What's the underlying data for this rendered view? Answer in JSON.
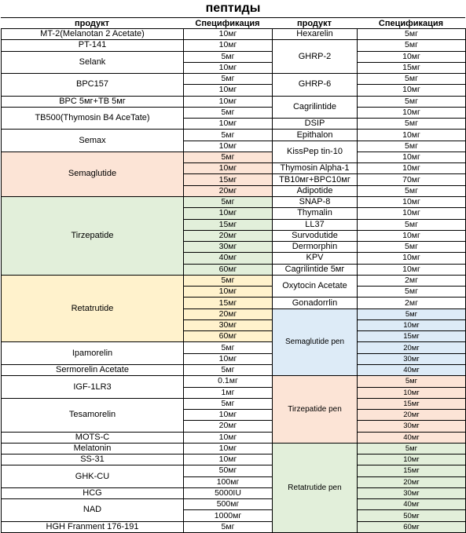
{
  "title": "пептиды",
  "headers": {
    "product": "продукт",
    "spec": "Спецификация"
  },
  "colors": {
    "salmon": "#fce4d6",
    "green": "#e2efda",
    "yellow": "#fff2cc",
    "blue": "#ddebf7"
  },
  "left_groups": [
    {
      "name": "MT-2(Melanotan 2 Acetate)",
      "specs": [
        "10мг"
      ]
    },
    {
      "name": "PT-141",
      "specs": [
        "10мг"
      ]
    },
    {
      "name": "Selank",
      "specs": [
        "5мг",
        "10мг"
      ]
    },
    {
      "name": "BPC157",
      "specs": [
        "5мг",
        "10мг"
      ]
    },
    {
      "name": "BPC 5мг+TB 5мг",
      "specs": [
        "10мг"
      ]
    },
    {
      "name": "TB500(Thymosin B4 AceTate)",
      "specs": [
        "5мг",
        "10мг"
      ]
    },
    {
      "name": "Semax",
      "specs": [
        "5мг",
        "10мг"
      ]
    },
    {
      "name": "Semaglutide",
      "color": "salmon",
      "specs": [
        "5мг",
        "10мг",
        "15мг",
        "20мг"
      ]
    },
    {
      "name": "Tirzepatide",
      "color": "green",
      "specs": [
        "5мг",
        "10мг",
        "15мг",
        "20мг",
        "30мг",
        "40мг",
        "60мг"
      ]
    },
    {
      "name": "Retatrutide",
      "color": "yellow",
      "specs": [
        "5мг",
        "10мг",
        "15мг",
        "20мг",
        "30мг",
        "60мг"
      ]
    },
    {
      "name": "Ipamorelin",
      "specs": [
        "5мг",
        "10мг"
      ]
    },
    {
      "name": "Sermorelin Acetate",
      "specs": [
        "5мг"
      ]
    },
    {
      "name": "IGF-1LR3",
      "specs": [
        "0.1мг",
        "1мг"
      ]
    },
    {
      "name": "Tesamorelin",
      "specs": [
        "5мг",
        "10мг",
        "20мг"
      ]
    },
    {
      "name": "MOTS-C",
      "specs": [
        "10мг"
      ]
    },
    {
      "name": "Melatonin",
      "specs": [
        "10мг"
      ]
    },
    {
      "name": "SS-31",
      "specs": [
        "10мг"
      ]
    },
    {
      "name": "GHK-CU",
      "specs": [
        "50мг",
        "100мг"
      ]
    },
    {
      "name": "HCG",
      "specs": [
        "5000IU"
      ]
    },
    {
      "name": "NAD",
      "specs": [
        "500мг",
        "1000мг"
      ]
    },
    {
      "name": "HGH Franment 176-191",
      "specs": [
        "5мг"
      ]
    }
  ],
  "right_groups": [
    {
      "name": "Hexarelin",
      "specs": [
        "5мг"
      ]
    },
    {
      "name": "GHRP-2",
      "specs": [
        "5мг",
        "10мг",
        "15мг"
      ]
    },
    {
      "name": "GHRP-6",
      "specs": [
        "5мг",
        "10мг"
      ]
    },
    {
      "name": "Cagrilintide",
      "specs": [
        "5мг",
        "10мг"
      ]
    },
    {
      "name": "DSIP",
      "specs": [
        "5мг"
      ]
    },
    {
      "name": "Epithalon",
      "specs": [
        "10мг"
      ]
    },
    {
      "name": "KissPep tin-10",
      "specs": [
        "5мг",
        "10мг"
      ]
    },
    {
      "name": "Thymosin Alpha-1",
      "specs": [
        "10мг"
      ]
    },
    {
      "name": "TB10мг+BPC10мг",
      "specs": [
        "70мг"
      ]
    },
    {
      "name": "Adipotide",
      "specs": [
        "5мг"
      ]
    },
    {
      "name": "SNAP-8",
      "specs": [
        "10мг"
      ]
    },
    {
      "name": "Thymalin",
      "specs": [
        "10мг"
      ]
    },
    {
      "name": "LL37",
      "specs": [
        "5мг"
      ]
    },
    {
      "name": "Survodutide",
      "specs": [
        "10мг"
      ]
    },
    {
      "name": "Dermorphin",
      "specs": [
        "5мг"
      ]
    },
    {
      "name": "KPV",
      "specs": [
        "10мг"
      ]
    },
    {
      "name": "Cagrilintide 5мг",
      "specs": [
        "10мг"
      ]
    },
    {
      "name": "Oxytocin Acetate",
      "specs": [
        "2мг",
        "5мг"
      ]
    },
    {
      "name": "Gonadorrlin",
      "specs": [
        "2мг"
      ]
    },
    {
      "name": "Semaglutide pen",
      "color": "blue",
      "pen": true,
      "specs": [
        "5мг",
        "10мг",
        "15мг",
        "20мг",
        "30мг",
        "40мг"
      ]
    },
    {
      "name": "Tirzepatide pen",
      "color": "salmon",
      "pen": true,
      "specs": [
        "5мг",
        "10мг",
        "15мг",
        "20мг",
        "30мг",
        "40мг"
      ]
    },
    {
      "name": "Retatrutide pen",
      "color": "green",
      "pen": true,
      "specs": [
        "5мг",
        "10мг",
        "15мг",
        "20мг",
        "30мг",
        "40мг",
        "50мг",
        "60мг"
      ]
    }
  ]
}
